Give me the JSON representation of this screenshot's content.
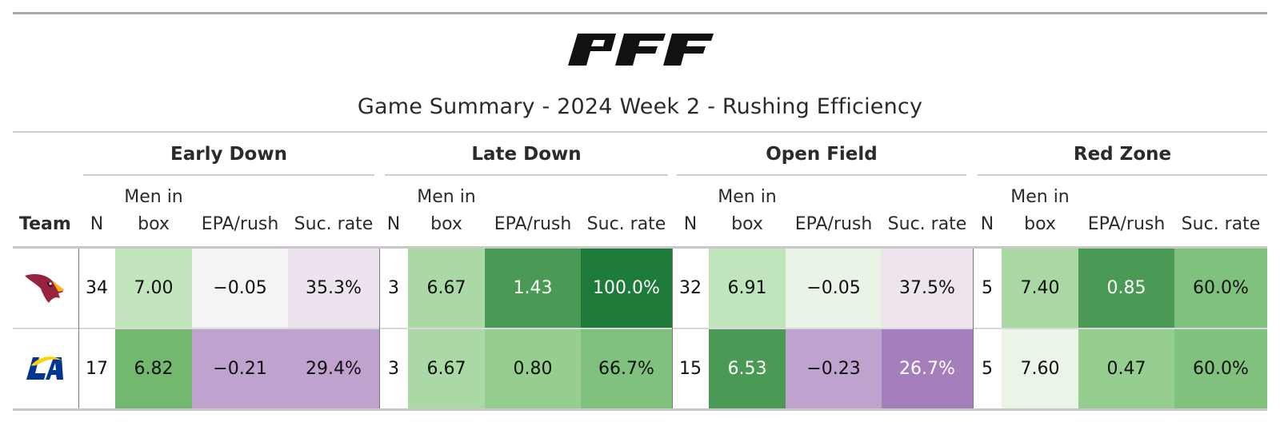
{
  "title": "Game Summary - 2024 Week 2 - Rushing Efficiency",
  "brand": {
    "logo_text": "PFF",
    "logo_color": "#111111"
  },
  "header": {
    "team_label": "Team",
    "groups": [
      "Early Down",
      "Late Down",
      "Open Field",
      "Red Zone"
    ],
    "columns": [
      "N",
      "Men in box",
      "EPA/rush",
      "Suc. rate"
    ]
  },
  "rows": [
    {
      "team_icon": "cardinals-logo-icon",
      "cells": [
        {
          "v": "34",
          "bg": "#ffffff",
          "fg": "#111111"
        },
        {
          "v": "7.00",
          "bg": "#c2e5bd",
          "fg": "#111111"
        },
        {
          "v": "−0.05",
          "bg": "#f4f4f4",
          "fg": "#111111"
        },
        {
          "v": "35.3%",
          "bg": "#ede3ee",
          "fg": "#111111"
        },
        {
          "v": "3",
          "bg": "#ffffff",
          "fg": "#111111"
        },
        {
          "v": "6.67",
          "bg": "#abd9a5",
          "fg": "#111111"
        },
        {
          "v": "1.43",
          "bg": "#4a9a55",
          "fg": "#ffffff"
        },
        {
          "v": "100.0%",
          "bg": "#1d7a38",
          "fg": "#ffffff"
        },
        {
          "v": "32",
          "bg": "#ffffff",
          "fg": "#111111"
        },
        {
          "v": "6.91",
          "bg": "#c0e4bb",
          "fg": "#111111"
        },
        {
          "v": "−0.05",
          "bg": "#e9f4e7",
          "fg": "#111111"
        },
        {
          "v": "37.5%",
          "bg": "#ede4ee",
          "fg": "#111111"
        },
        {
          "v": "5",
          "bg": "#ffffff",
          "fg": "#111111"
        },
        {
          "v": "7.40",
          "bg": "#a9d8a3",
          "fg": "#111111"
        },
        {
          "v": "0.85",
          "bg": "#4a9a55",
          "fg": "#ffffff"
        },
        {
          "v": "60.0%",
          "bg": "#80c27d",
          "fg": "#111111"
        }
      ]
    },
    {
      "team_icon": "rams-logo-icon",
      "cells": [
        {
          "v": "17",
          "bg": "#ffffff",
          "fg": "#111111"
        },
        {
          "v": "6.82",
          "bg": "#73b86f",
          "fg": "#111111"
        },
        {
          "v": "−0.21",
          "bg": "#c0a2ce",
          "fg": "#111111"
        },
        {
          "v": "29.4%",
          "bg": "#c0a2ce",
          "fg": "#111111"
        },
        {
          "v": "3",
          "bg": "#ffffff",
          "fg": "#111111"
        },
        {
          "v": "6.67",
          "bg": "#abd9a5",
          "fg": "#111111"
        },
        {
          "v": "0.80",
          "bg": "#95ce8f",
          "fg": "#111111"
        },
        {
          "v": "66.7%",
          "bg": "#80c27d",
          "fg": "#111111"
        },
        {
          "v": "15",
          "bg": "#ffffff",
          "fg": "#111111"
        },
        {
          "v": "6.53",
          "bg": "#4a9a55",
          "fg": "#ffffff"
        },
        {
          "v": "−0.23",
          "bg": "#c0a2ce",
          "fg": "#111111"
        },
        {
          "v": "26.7%",
          "bg": "#a57fbb",
          "fg": "#ffffff"
        },
        {
          "v": "5",
          "bg": "#ffffff",
          "fg": "#111111"
        },
        {
          "v": "7.60",
          "bg": "#eaf5e8",
          "fg": "#111111"
        },
        {
          "v": "0.47",
          "bg": "#95ce8f",
          "fg": "#111111"
        },
        {
          "v": "60.0%",
          "bg": "#80c27d",
          "fg": "#111111"
        }
      ]
    }
  ]
}
